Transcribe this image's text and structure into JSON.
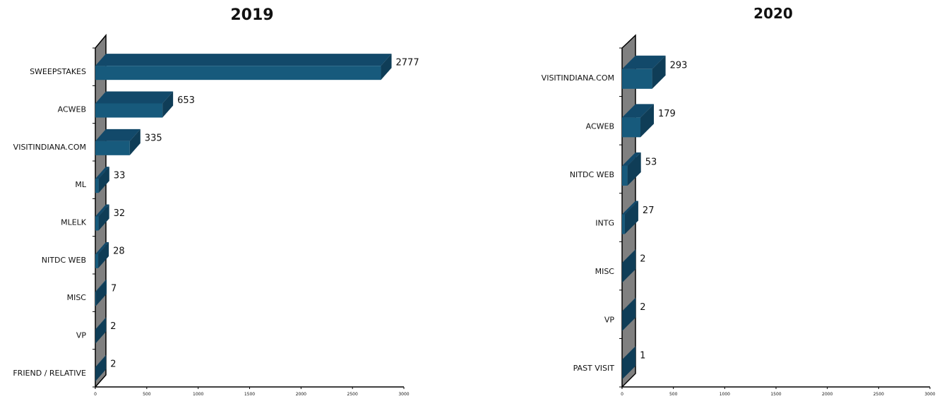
{
  "colors": {
    "bar_front": "#175a7c",
    "bar_side": "#0f3d57",
    "bar_top": "#12496a",
    "wall": "#808080",
    "wall_side": "#6a6a6a",
    "axis": "#000000"
  },
  "chart_data": [
    {
      "type": "bar",
      "orientation": "horizontal",
      "three_d": true,
      "title": "2019",
      "categories": [
        "SWEEPSTAKES",
        "ACWEB",
        "VISITINDIANA.COM",
        "ML",
        "MLELK",
        "NITDC WEB",
        "MISC",
        "VP",
        "FRIEND / RELATIVE"
      ],
      "values": [
        2777,
        653,
        335,
        33,
        32,
        28,
        7,
        2,
        2
      ],
      "data_labels": [
        "2777",
        "653",
        "335",
        "33",
        "32",
        "28",
        "7",
        "2",
        "2"
      ],
      "xlim": [
        0,
        3000
      ],
      "xticks": [
        "0",
        "500",
        "1000",
        "1500",
        "2000",
        "2500",
        "3000"
      ],
      "grid": false,
      "legend": "none"
    },
    {
      "type": "bar",
      "orientation": "horizontal",
      "three_d": true,
      "title": "2020",
      "categories": [
        "VISITINDIANA.COM",
        "ACWEB",
        "NITDC WEB",
        "INTG",
        "MISC",
        "VP",
        "PAST VISIT"
      ],
      "values": [
        293,
        179,
        53,
        27,
        2,
        2,
        1
      ],
      "data_labels": [
        "293",
        "179",
        "53",
        "27",
        "2",
        "2",
        "1"
      ],
      "xlim": [
        0,
        3000
      ],
      "xticks": [
        "0",
        "500",
        "1000",
        "1500",
        "2000",
        "2500",
        "3000"
      ],
      "grid": false,
      "legend": "none"
    }
  ]
}
